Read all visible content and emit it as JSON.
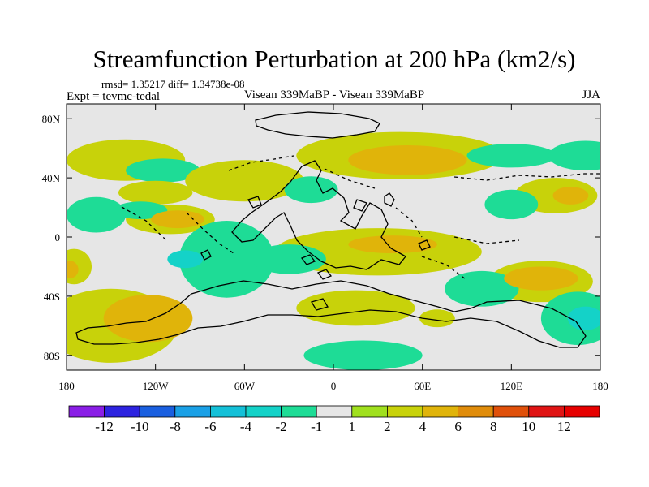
{
  "chart_data": {
    "type": "heatmap",
    "title": "Streamfunction Perturbation at 200 hPa (km2/s)",
    "subtitle_left": "Expt = tevmc-tedal",
    "subtitle_center": "Visean 339MaBP - Visean 339MaBP",
    "subtitle_right": "JJA",
    "stats": "rmsd= 1.35217 diff= 1.34738e-08",
    "x_ticks": [
      {
        "value": -180,
        "label": "180"
      },
      {
        "value": -120,
        "label": "120W"
      },
      {
        "value": -60,
        "label": "60W"
      },
      {
        "value": 0,
        "label": "0"
      },
      {
        "value": 60,
        "label": "60E"
      },
      {
        "value": 120,
        "label": "120E"
      },
      {
        "value": 180,
        "label": "180"
      }
    ],
    "y_ticks": [
      {
        "value": 80,
        "label": "80N"
      },
      {
        "value": 40,
        "label": "40N"
      },
      {
        "value": 0,
        "label": "0"
      },
      {
        "value": -40,
        "label": "40S"
      },
      {
        "value": -80,
        "label": "80S"
      }
    ],
    "xlim": [
      -180,
      180
    ],
    "ylim": [
      -90,
      90
    ],
    "colorbar": {
      "levels": [
        "-12",
        "-10",
        "-8",
        "-6",
        "-4",
        "-2",
        "-1",
        "1",
        "2",
        "4",
        "6",
        "8",
        "10",
        "12"
      ],
      "colors": [
        "#8a1ee6",
        "#2d23e0",
        "#1a5fe0",
        "#1aa0e6",
        "#14c0d8",
        "#14d2c8",
        "#1edc96",
        "#e6e6e6",
        "#a0e01e",
        "#c8d20a",
        "#e0b40a",
        "#e08c0a",
        "#e0500a",
        "#e01414",
        "#e60000"
      ]
    },
    "anomalies": [
      {
        "lon": -140,
        "lat": 52,
        "rlon": 40,
        "rlat": 14,
        "value": 2
      },
      {
        "lon": -115,
        "lat": 45,
        "rlon": 25,
        "rlat": 8,
        "value": -2
      },
      {
        "lon": -60,
        "lat": 38,
        "rlon": 40,
        "rlat": 14,
        "value": 2
      },
      {
        "lon": -15,
        "lat": 32,
        "rlon": 18,
        "rlat": 9,
        "value": -2
      },
      {
        "lon": 45,
        "lat": 55,
        "rlon": 70,
        "rlat": 16,
        "value": 2
      },
      {
        "lon": 50,
        "lat": 52,
        "rlon": 40,
        "rlat": 10,
        "value": 4
      },
      {
        "lon": 150,
        "lat": 28,
        "rlon": 28,
        "rlat": 12,
        "value": 2
      },
      {
        "lon": 160,
        "lat": 28,
        "rlon": 12,
        "rlat": 6,
        "value": 4
      },
      {
        "lon": -120,
        "lat": 30,
        "rlon": 25,
        "rlat": 8,
        "value": 2
      },
      {
        "lon": -160,
        "lat": 15,
        "rlon": 20,
        "rlat": 12,
        "value": -2
      },
      {
        "lon": -110,
        "lat": 12,
        "rlon": 30,
        "rlat": 10,
        "value": 2
      },
      {
        "lon": -105,
        "lat": 12,
        "rlon": 18,
        "rlat": 6,
        "value": 4
      },
      {
        "lon": -72,
        "lat": -15,
        "rlon": 32,
        "rlat": 26,
        "value": -2
      },
      {
        "lon": -100,
        "lat": -15,
        "rlon": 12,
        "rlat": 6,
        "value": -4
      },
      {
        "lon": 30,
        "lat": -10,
        "rlon": 70,
        "rlat": 16,
        "value": 2
      },
      {
        "lon": 40,
        "lat": -5,
        "rlon": 30,
        "rlat": 6,
        "value": 4
      },
      {
        "lon": -150,
        "lat": -60,
        "rlon": 45,
        "rlat": 25,
        "value": 2
      },
      {
        "lon": -125,
        "lat": -55,
        "rlon": 30,
        "rlat": 16,
        "value": 4
      },
      {
        "lon": -175,
        "lat": -20,
        "rlon": 12,
        "rlat": 12,
        "value": 2
      },
      {
        "lon": -178,
        "lat": -22,
        "rlon": 6,
        "rlat": 6,
        "value": 4
      },
      {
        "lon": 140,
        "lat": -30,
        "rlon": 35,
        "rlat": 14,
        "value": 2
      },
      {
        "lon": 140,
        "lat": -28,
        "rlon": 25,
        "rlat": 8,
        "value": 4
      },
      {
        "lon": 165,
        "lat": -55,
        "rlon": 25,
        "rlat": 18,
        "value": -2
      },
      {
        "lon": 170,
        "lat": -55,
        "rlon": 12,
        "rlat": 8,
        "value": -4
      },
      {
        "lon": 120,
        "lat": 22,
        "rlon": 18,
        "rlat": 10,
        "value": -2
      },
      {
        "lon": 100,
        "lat": -35,
        "rlon": 25,
        "rlat": 12,
        "value": -2
      },
      {
        "lon": 15,
        "lat": -48,
        "rlon": 40,
        "rlat": 12,
        "value": 2
      },
      {
        "lon": 70,
        "lat": -55,
        "rlon": 12,
        "rlat": 6,
        "value": 2
      },
      {
        "lon": 20,
        "lat": -80,
        "rlon": 40,
        "rlat": 10,
        "value": -2
      },
      {
        "lon": 120,
        "lat": 55,
        "rlon": 30,
        "rlat": 8,
        "value": -2
      },
      {
        "lon": 170,
        "lat": 55,
        "rlon": 25,
        "rlat": 10,
        "value": -2
      },
      {
        "lon": -130,
        "lat": 18,
        "rlon": 18,
        "rlat": 6,
        "value": -2
      },
      {
        "lon": -30,
        "lat": -15,
        "rlon": 25,
        "rlat": 10,
        "value": -2
      },
      {
        "lon": -15,
        "lat": -40,
        "rlon": 20,
        "rlat": 10,
        "value": -1
      }
    ]
  }
}
